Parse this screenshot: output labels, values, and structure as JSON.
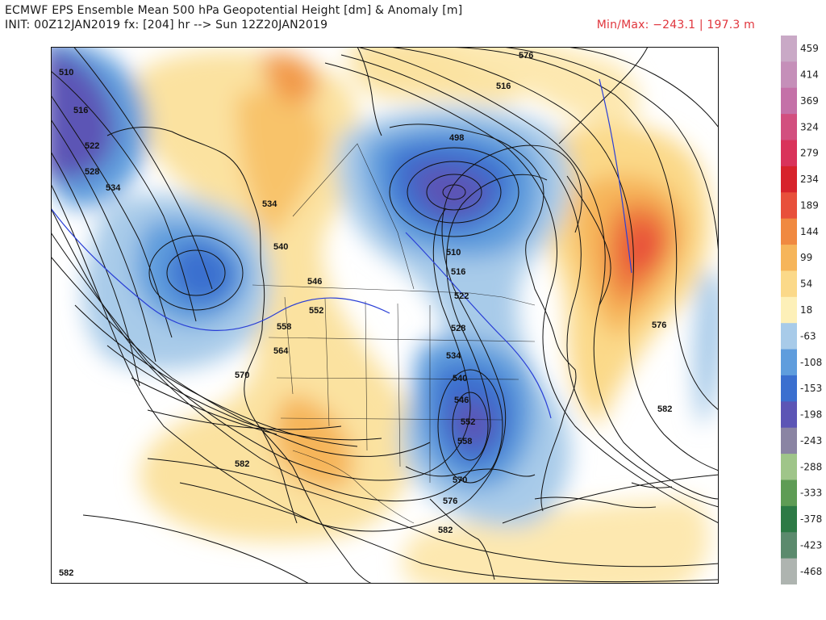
{
  "header": {
    "title": "ECMWF EPS Ensemble Mean 500 hPa Geopotential Height [dm] & Anomaly [m]",
    "init": "INIT: 00Z12JAN2019 fx: [204] hr --> Sun 12Z20JAN2019",
    "minmax": "Min/Max: −243.1 | 197.3 m"
  },
  "map": {
    "contour_labels": [
      "510",
      "516",
      "522",
      "528",
      "534",
      "534",
      "540",
      "546",
      "552",
      "558",
      "564",
      "570",
      "576",
      "582",
      "582",
      "582",
      "570",
      "576",
      "498",
      "510",
      "516",
      "522",
      "528",
      "534",
      "540",
      "546",
      "552",
      "558",
      "516",
      "576",
      "582"
    ]
  },
  "colorbar": {
    "ticks": [
      "459",
      "414",
      "369",
      "324",
      "279",
      "234",
      "189",
      "144",
      "99",
      "54",
      "18",
      "-63",
      "-108",
      "-153",
      "-198",
      "-243",
      "-288",
      "-333",
      "-378",
      "-423",
      "-468"
    ],
    "colors": [
      "#c9a9c6",
      "#c58fb9",
      "#c471a8",
      "#d24f7f",
      "#d9335a",
      "#d7232b",
      "#e8503b",
      "#f08940",
      "#f6b55a",
      "#fbd989",
      "#fdf0b8",
      "#a8cbe9",
      "#5f9ddd",
      "#3b6fcf",
      "#5c55b5",
      "#8a84a3",
      "#9fc589",
      "#5e9c55",
      "#2c7a45",
      "#5b8a6d",
      "#aeb4b0"
    ]
  }
}
